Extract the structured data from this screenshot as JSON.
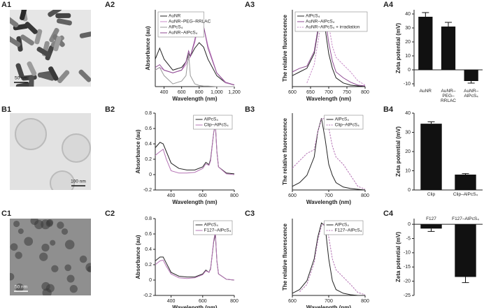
{
  "chart_data": [
    {
      "type": "image",
      "panel": "A1",
      "scale_bar": "50 nm"
    },
    {
      "type": "line",
      "panel": "A2",
      "y_label": "Absorbance (au)",
      "x_label": "Wavelength (nm)",
      "legend": "upper left",
      "x": [
        300,
        350,
        400,
        500,
        600,
        650,
        680,
        700,
        750,
        800,
        850,
        900,
        1000,
        1100,
        1200
      ],
      "xlim": [
        300,
        1200
      ],
      "xticks": [
        400,
        600,
        800,
        {
          "value": 1000,
          "label": "1,000"
        },
        {
          "value": 1200,
          "label": "1,200"
        }
      ],
      "ylim": [
        0,
        1.4
      ],
      "series": [
        {
          "name": "AuNR",
          "color": "#222222",
          "values": [
            0.5,
            0.7,
            0.5,
            0.3,
            0.35,
            0.45,
            0.6,
            0.55,
            0.7,
            0.8,
            0.72,
            0.5,
            0.2,
            0.07,
            0.03
          ]
        },
        {
          "name": "AuNR–PEG–RRLAC",
          "color": "#c98bc9",
          "values": [
            0.3,
            0.35,
            0.3,
            0.25,
            0.3,
            0.4,
            0.5,
            0.55,
            0.8,
            1.2,
            1.1,
            0.75,
            0.25,
            0.07,
            0.03
          ]
        },
        {
          "name": "AlPcS₄",
          "color": "#999999",
          "values": [
            0.3,
            0.35,
            0.2,
            0.05,
            0.1,
            0.2,
            0.6,
            0.2,
            0.05,
            0.02,
            0.01,
            0.01,
            0,
            0,
            0
          ]
        },
        {
          "name": "AuNR–AlPcS₄",
          "color": "#8e4a92",
          "values": [
            0.35,
            0.4,
            0.3,
            0.25,
            0.3,
            0.45,
            0.65,
            0.55,
            0.85,
            1.25,
            1.1,
            0.7,
            0.25,
            0.08,
            0.03
          ]
        }
      ]
    },
    {
      "type": "line",
      "panel": "A3",
      "y_label": "The relative fluorescence",
      "x_label": "Wavelength (nm)",
      "legend": "upper left",
      "x": [
        600,
        620,
        640,
        660,
        670,
        680,
        690,
        700,
        710,
        720,
        740,
        760,
        780,
        800
      ],
      "xlim": [
        600,
        800
      ],
      "xticks": [
        600,
        650,
        700,
        750,
        800
      ],
      "ylim": [
        0,
        1.05
      ],
      "series": [
        {
          "name": "AlPcS₄",
          "color": "#222222",
          "values": [
            0.15,
            0.2,
            0.25,
            0.45,
            0.75,
            0.98,
            0.8,
            0.45,
            0.25,
            0.12,
            0.05,
            0.02,
            0.01,
            0
          ]
        },
        {
          "name": "AuNR–AlPcS₄",
          "color": "#8e4a92",
          "values": [
            0.2,
            0.25,
            0.28,
            0.48,
            0.78,
            0.99,
            0.95,
            0.6,
            0.35,
            0.2,
            0.12,
            0.06,
            0.02,
            0.01
          ]
        },
        {
          "name": "AuNR–AlPcS₄ + irradiation",
          "color": "#c98bc9",
          "dash": true,
          "values": [
            null,
            null,
            0.05,
            0.3,
            0.6,
            0.9,
            1.0,
            0.85,
            0.55,
            0.4,
            0.3,
            0.2,
            0.08,
            0.02
          ]
        }
      ]
    },
    {
      "type": "bar",
      "panel": "A4",
      "y_label": "Zeta potential (mV)",
      "color": "#111111",
      "categories": [
        "AuNR",
        "AuNR–PEG–RRLAC",
        "AuNR–AlPcS₄"
      ],
      "values": [
        38,
        31,
        -8
      ],
      "errors": [
        3,
        3,
        1.5
      ],
      "ylim": [
        -12,
        43
      ],
      "yticks": [
        -10,
        0,
        10,
        20,
        30,
        40
      ]
    },
    {
      "type": "image",
      "panel": "B1",
      "scale_bar": "100 nm"
    },
    {
      "type": "line",
      "panel": "B2",
      "y_label": "Absorbance (au)",
      "x_label": "Wavelength (nm)",
      "legend": "upper right",
      "x": [
        300,
        330,
        350,
        370,
        400,
        450,
        500,
        550,
        600,
        620,
        640,
        650,
        670,
        680,
        690,
        700,
        750,
        800
      ],
      "xlim": [
        300,
        800
      ],
      "xticks": [
        400,
        600,
        800
      ],
      "ylim": [
        -0.2,
        0.8
      ],
      "yticks": [
        -0.2,
        0,
        0.2,
        0.4,
        0.6,
        0.8
      ],
      "series": [
        {
          "name": "AlPcS₄",
          "color": "#222222",
          "values": [
            0.35,
            0.42,
            0.4,
            0.3,
            0.15,
            0.08,
            0.06,
            0.06,
            0.1,
            0.16,
            0.13,
            0.2,
            0.55,
            0.65,
            0.3,
            0.1,
            0.02,
            0.01
          ]
        },
        {
          "name": "Clip–AlPcS₄",
          "color": "#b574b5",
          "values": [
            0.25,
            0.3,
            0.33,
            0.2,
            0.05,
            0.02,
            0.02,
            0.03,
            0.08,
            0.14,
            0.12,
            0.18,
            0.55,
            0.67,
            0.3,
            0.1,
            0.01,
            0
          ]
        }
      ]
    },
    {
      "type": "line",
      "panel": "B3",
      "y_label": "The relative fluorescence",
      "x_label": "Wavelength (nm)",
      "legend": "upper right",
      "x": [
        600,
        620,
        640,
        660,
        670,
        680,
        690,
        700,
        710,
        720,
        740,
        760,
        780,
        800
      ],
      "xlim": [
        600,
        800
      ],
      "xticks": [
        600,
        700,
        800
      ],
      "ylim": [
        0,
        1.05
      ],
      "series": [
        {
          "name": "AlPcS₄",
          "color": "#222222",
          "values": [
            0.05,
            0.1,
            0.2,
            0.45,
            0.8,
            0.98,
            0.7,
            0.35,
            0.2,
            0.1,
            0.04,
            0.02,
            0.01,
            0
          ]
        },
        {
          "name": "Clip–AlPcS₄",
          "color": "#b574b5",
          "dash": true,
          "values": [
            0.3,
            0.4,
            0.5,
            0.55,
            0.8,
            0.97,
            0.98,
            0.85,
            0.6,
            0.45,
            0.35,
            0.2,
            0.05,
            0.01
          ]
        }
      ]
    },
    {
      "type": "bar",
      "panel": "B4",
      "y_label": "Zeta potential (mV)",
      "color": "#111111",
      "categories": [
        "Clip",
        "Clip–AlPcS₄"
      ],
      "values": [
        34.5,
        8
      ],
      "errors": [
        1,
        0.5
      ],
      "ylim": [
        0,
        40
      ],
      "yticks": [
        0,
        10,
        20,
        30,
        40
      ]
    },
    {
      "type": "image",
      "panel": "C1",
      "scale_bar": "50 nm"
    },
    {
      "type": "line",
      "panel": "C2",
      "y_label": "Absorbance (au)",
      "x_label": "Wavelength (nm)",
      "legend": "upper right",
      "x": [
        300,
        330,
        350,
        370,
        400,
        450,
        500,
        550,
        600,
        620,
        640,
        650,
        670,
        680,
        690,
        700,
        750,
        800
      ],
      "xlim": [
        300,
        800
      ],
      "xticks": [
        400,
        600,
        800
      ],
      "ylim": [
        -0.2,
        0.8
      ],
      "yticks": [
        -0.2,
        0,
        0.2,
        0.4,
        0.6,
        0.8
      ],
      "series": [
        {
          "name": "AlPcS₄",
          "color": "#222222",
          "values": [
            0.25,
            0.3,
            0.3,
            0.22,
            0.1,
            0.05,
            0.04,
            0.04,
            0.08,
            0.13,
            0.1,
            0.15,
            0.5,
            0.6,
            0.25,
            0.08,
            0.01,
            0
          ]
        },
        {
          "name": "F127–AlPcS₄",
          "color": "#b574b5",
          "values": [
            0.2,
            0.25,
            0.26,
            0.18,
            0.08,
            0.03,
            0.02,
            0.03,
            0.07,
            0.12,
            0.1,
            0.14,
            0.52,
            0.63,
            0.25,
            0.08,
            0.01,
            0
          ]
        }
      ]
    },
    {
      "type": "line",
      "panel": "C3",
      "y_label": "The relative fluorescence",
      "x_label": "Wavelength (nm)",
      "legend": "upper right",
      "x": [
        600,
        620,
        640,
        660,
        670,
        680,
        690,
        700,
        710,
        720,
        740,
        760,
        780,
        800
      ],
      "xlim": [
        600,
        800
      ],
      "xticks": [
        600,
        700,
        800
      ],
      "ylim": [
        0,
        1.05
      ],
      "series": [
        {
          "name": "AlPcS₄",
          "color": "#222222",
          "values": [
            0.03,
            0.08,
            0.2,
            0.5,
            0.8,
            0.99,
            0.95,
            0.5,
            0.2,
            0.08,
            0.03,
            0.01,
            0,
            0
          ]
        },
        {
          "name": "F127–AlPcS₄",
          "color": "#b574b5",
          "dash": true,
          "values": [
            null,
            0.05,
            0.15,
            0.45,
            0.75,
            0.95,
            0.99,
            0.8,
            0.5,
            0.35,
            0.25,
            0.15,
            0.04,
            0.01
          ]
        }
      ]
    },
    {
      "type": "bar",
      "panel": "C4",
      "y_label": "Zeta potential (mV)",
      "color": "#111111",
      "categories": [
        "F127",
        "F127–AlPcS₄"
      ],
      "values": [
        -1.5,
        -18.5
      ],
      "errors": [
        1,
        2
      ],
      "ylim": [
        -25,
        2
      ],
      "yticks": [
        -25,
        -20,
        -15,
        -10,
        -5,
        0
      ]
    }
  ]
}
